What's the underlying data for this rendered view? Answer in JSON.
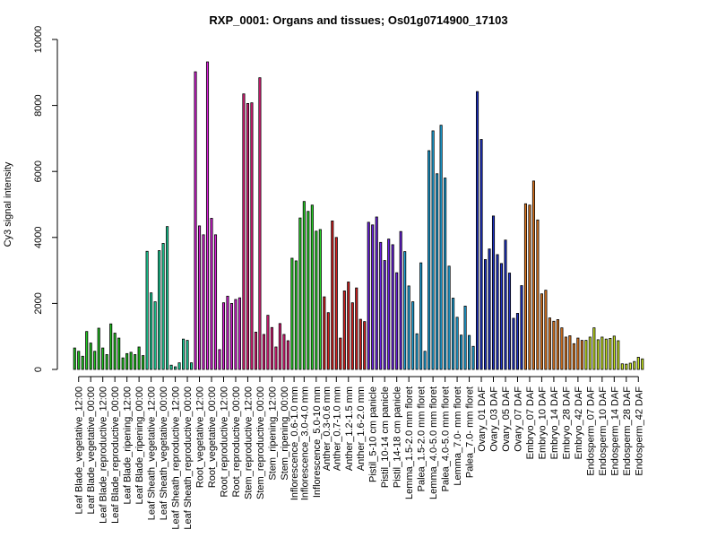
{
  "chart_data": {
    "type": "bar",
    "title": "RXP_0001: Organs and tissues; Os01g0714900_17103",
    "xlabel": "",
    "ylabel": "Cy3 signal intensity",
    "ylim": [
      0,
      10000
    ],
    "yticks": [
      0,
      2000,
      4000,
      6000,
      8000,
      10000
    ],
    "grid": false,
    "legend": "none",
    "categories": [
      "Leaf Blade_vegetative_12:00",
      "Leaf Blade_vegetative_00:00",
      "Leaf Blade_reproductive_12:00",
      "Leaf Blade_reproductive_00:00",
      "Leaf Blade_ripening_12:00",
      "Leaf Blade_ripening_00:00",
      "Leaf Sheath_vegetative_12:00",
      "Leaf Sheath_vegetative_00:00",
      "Leaf Sheath_reproductive_12:00",
      "Leaf Sheath_reproductive_00:00",
      "Root_vegetative_12:00",
      "Root_vegetative_00:00",
      "Root_reproductive_12:00",
      "Root_reproductive_00:00",
      "Stem_reproductive_12:00",
      "Stem_reproductive_00:00",
      "Stem_ripening_12:00",
      "Stem_ripening_00:00",
      "Inflorescence_0.6-1.0 mm",
      "Inflorescence_3.0-4.0 mm",
      "Inflorescence_5.0-10 mm",
      "Anther_0.3-0.6 mm",
      "Anther_0.7-1.0 mm",
      "Anther_1.2-1.5 mm",
      "Anther_1.6-2.0 mm",
      "Pistil_5-10 cm panicle",
      "Pistil_10-14 cm panicle",
      "Pistil_14-18 cm panicle",
      "Lemma_1.5-2.0 mm floret",
      "Palea_1.5-2.0 mm floret",
      "Lemma_4.0-5.0 mm floret",
      "Palea_4.0-5.0 mm floret",
      "Lemma_7.0- mm floret",
      "Palea_7.0- mm floret",
      "Ovary_01 DAF",
      "Ovary_03 DAF",
      "Ovary_05 DAF",
      "Ovary_07 DAF",
      "Embryo_07 DAF",
      "Embryo_10 DAF",
      "Embryo_14 DAF",
      "Embryo_28 DAF",
      "Embryo_42 DAF",
      "Endosperm_07 DAF",
      "Endosperm_10 DAF",
      "Endosperm_14 DAF",
      "Endosperm_28 DAF",
      "Endosperm_42 DAF"
    ],
    "groups": [
      {
        "color": "#1fc41f",
        "values": [
          650,
          550,
          400
        ]
      },
      {
        "color": "#1fc41f",
        "values": [
          1150,
          800,
          550
        ]
      },
      {
        "color": "#1fc41f",
        "values": [
          1250,
          650,
          450
        ]
      },
      {
        "color": "#1fc41f",
        "values": [
          1380,
          1100,
          950
        ]
      },
      {
        "color": "#1fc41f",
        "values": [
          350,
          480,
          520
        ]
      },
      {
        "color": "#1fc41f",
        "values": [
          450,
          680,
          420
        ]
      },
      {
        "color": "#1fd9a0",
        "values": [
          3580,
          2320,
          2050
        ]
      },
      {
        "color": "#1fd9a0",
        "values": [
          3600,
          3820,
          4330
        ]
      },
      {
        "color": "#1fd9a0",
        "values": [
          130,
          80,
          200
        ]
      },
      {
        "color": "#1fd9a0",
        "values": [
          920,
          880,
          200
        ]
      },
      {
        "color": "#d81fd8",
        "values": [
          9020,
          4350,
          4080
        ]
      },
      {
        "color": "#d81fd8",
        "values": [
          9320,
          4580,
          4080
        ]
      },
      {
        "color": "#d81fd8",
        "values": [
          600,
          2020,
          2220
        ]
      },
      {
        "color": "#d81fd8",
        "values": [
          2000,
          2120,
          2170
        ]
      },
      {
        "color": "#e61f7e",
        "values": [
          8350,
          8060,
          8080
        ]
      },
      {
        "color": "#e61f7e",
        "values": [
          1130,
          8840,
          1060
        ]
      },
      {
        "color": "#e61f7e",
        "values": [
          1640,
          1270,
          680
        ]
      },
      {
        "color": "#e61f7e",
        "values": [
          1390,
          1060,
          870
        ]
      },
      {
        "color": "#28d428",
        "values": [
          3370,
          3290
        ]
      },
      {
        "color": "#28d428",
        "values": [
          4590,
          5090,
          4790
        ]
      },
      {
        "color": "#28d428",
        "values": [
          4980,
          4190,
          4240
        ]
      },
      {
        "color": "#d41f1f",
        "values": [
          2200,
          1720
        ]
      },
      {
        "color": "#d41f1f",
        "values": [
          4500,
          4000,
          950
        ]
      },
      {
        "color": "#d41f1f",
        "values": [
          2380,
          2650,
          2020
        ]
      },
      {
        "color": "#d41f1f",
        "values": [
          2470,
          1520,
          1450
        ]
      },
      {
        "color": "#6a1fe0",
        "values": [
          4460,
          4380,
          4620
        ]
      },
      {
        "color": "#6a1fe0",
        "values": [
          3850,
          3300,
          3950
        ]
      },
      {
        "color": "#6a1fe0",
        "values": [
          3780,
          2930,
          4180
        ]
      },
      {
        "color": "#1fa8e0",
        "values": [
          3570,
          2530,
          2050
        ]
      },
      {
        "color": "#1fa8e0",
        "values": [
          1080,
          3230,
          550
        ]
      },
      {
        "color": "#1fa8e0",
        "values": [
          6630,
          7230,
          5930
        ]
      },
      {
        "color": "#1fa8e0",
        "values": [
          7400,
          5800,
          3130
        ]
      },
      {
        "color": "#1fa8e0",
        "values": [
          2160,
          1580,
          1040
        ]
      },
      {
        "color": "#1fa8e0",
        "values": [
          1920,
          1030,
          700
        ]
      },
      {
        "color": "#1f33c8",
        "values": [
          8420,
          6970,
          3330
        ]
      },
      {
        "color": "#1f33c8",
        "values": [
          3650,
          4650,
          3480
        ]
      },
      {
        "color": "#1f33c8",
        "values": [
          3210,
          3920,
          2920
        ]
      },
      {
        "color": "#1f33c8",
        "values": [
          1550,
          1700,
          2540
        ]
      },
      {
        "color": "#e67a1f",
        "values": [
          5020,
          4980,
          5710
        ]
      },
      {
        "color": "#e67a1f",
        "values": [
          4530,
          2290,
          2400
        ]
      },
      {
        "color": "#e67a1f",
        "values": [
          1560,
          1460,
          1510
        ]
      },
      {
        "color": "#e67a1f",
        "values": [
          1260,
          980,
          1020
        ]
      },
      {
        "color": "#e67a1f",
        "values": [
          780,
          950,
          880
        ]
      },
      {
        "color": "#c8e61f",
        "values": [
          880,
          980,
          1260
        ]
      },
      {
        "color": "#c8e61f",
        "values": [
          900,
          980,
          920
        ]
      },
      {
        "color": "#c8e61f",
        "values": [
          940,
          1010,
          870
        ]
      },
      {
        "color": "#c8e61f",
        "values": [
          170,
          160,
          190
        ]
      },
      {
        "color": "#c8e61f",
        "values": [
          240,
          370,
          320
        ]
      }
    ]
  }
}
